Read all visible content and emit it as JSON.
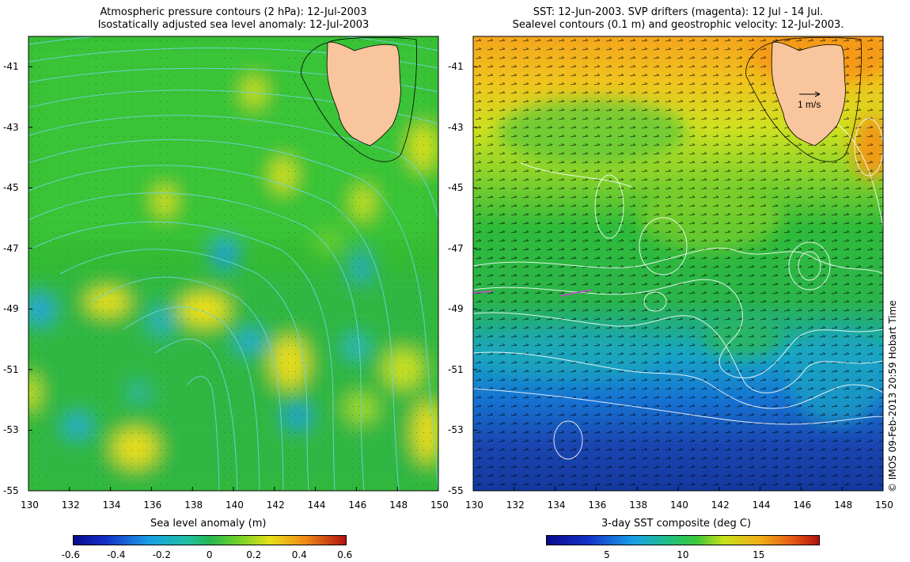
{
  "left_panel": {
    "title_line1": "Atmospheric pressure contours (2 hPa): 12-Jul-2003",
    "title_line2": "Isostatically adjusted sea level anomaly: 12-Jul-2003",
    "colorbar": {
      "label": "Sea level anomaly (m)",
      "ticks": [
        "-0.6",
        "-0.4",
        "-0.2",
        "0",
        "0.2",
        "0.4",
        "0.6"
      ],
      "tick_values": [
        -0.6,
        -0.4,
        -0.2,
        0,
        0.2,
        0.4,
        0.6
      ],
      "range": [
        -0.6,
        0.6
      ]
    }
  },
  "right_panel": {
    "title_line1": "SST: 12-Jun-2003. SVP drifters (magenta): 12 Jul - 14 Jul.",
    "title_line2": "Sealevel contours (0.1 m) and geostrophic velocity: 12-Jul-2003.",
    "scale_label": "1 m/s",
    "colorbar": {
      "label": "3-day SST composite (deg C)",
      "ticks": [
        "5",
        "10",
        "15"
      ],
      "tick_values": [
        5,
        10,
        15
      ],
      "range": [
        1,
        19
      ]
    }
  },
  "axes": {
    "lon_ticks": [
      "130",
      "132",
      "134",
      "136",
      "138",
      "140",
      "142",
      "144",
      "146",
      "148",
      "150"
    ],
    "lat_ticks": [
      "-41",
      "-43",
      "-45",
      "-47",
      "-49",
      "-51",
      "-53",
      "-55"
    ],
    "lon_range": [
      130,
      150
    ],
    "lat_range": [
      -55,
      -40
    ]
  },
  "credit": "© IMOS 09-Feb-2013 20:59 Hobart Time",
  "colors": {
    "land": "#f9c59d",
    "ocean_base": "#22bb22",
    "pressure_contour": "#6fd3dc",
    "sealevel_contour": "#ffffff",
    "drifter": "#d040d0"
  }
}
